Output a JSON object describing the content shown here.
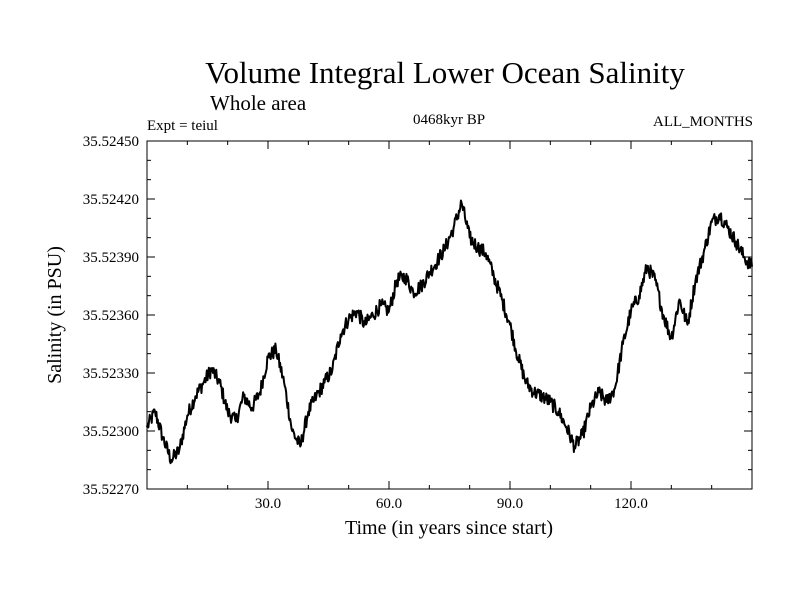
{
  "chart_data": {
    "type": "line",
    "title": "Volume Integral Lower Ocean Salinity",
    "subtitle": "Whole area",
    "annotations": {
      "left": "Expt = teiul",
      "center": "0468kyr BP",
      "right": "ALL_MONTHS"
    },
    "xlabel": "Time (in years since start)",
    "ylabel": "Salinity (in PSU)",
    "xlim": [
      0,
      150
    ],
    "ylim": [
      35.5227,
      35.5245
    ],
    "xticks": [
      30,
      60,
      90,
      120
    ],
    "xtick_labels": [
      "30.0",
      "60.0",
      "90.0",
      "120.0"
    ],
    "yticks": [
      35.5227,
      35.523,
      35.5233,
      35.5236,
      35.5239,
      35.5242,
      35.5245
    ],
    "ytick_labels": [
      "35.52270",
      "35.52300",
      "35.52330",
      "35.52360",
      "35.52390",
      "35.52420",
      "35.52450"
    ],
    "grid": false,
    "series": [
      {
        "name": "Salinity",
        "x": [
          0,
          2,
          4,
          6,
          8,
          10,
          12,
          14,
          16,
          18,
          20,
          22,
          24,
          26,
          28,
          30,
          32,
          34,
          36,
          38,
          40,
          42,
          44,
          46,
          48,
          50,
          52,
          54,
          56,
          58,
          60,
          62,
          64,
          66,
          68,
          70,
          72,
          74,
          76,
          78,
          80,
          82,
          84,
          86,
          88,
          90,
          92,
          94,
          96,
          98,
          100,
          102,
          104,
          106,
          108,
          110,
          112,
          114,
          116,
          118,
          120,
          122,
          124,
          126,
          128,
          130,
          132,
          134,
          136,
          138,
          140,
          142,
          144,
          146,
          148,
          150
        ],
        "values": [
          35.52302,
          35.5231,
          35.52296,
          35.52285,
          35.5229,
          35.52308,
          35.52318,
          35.52325,
          35.52332,
          35.52325,
          35.5231,
          35.52305,
          35.52318,
          35.52312,
          35.5232,
          35.52338,
          35.52342,
          35.52325,
          35.523,
          35.52292,
          35.5231,
          35.52318,
          35.52325,
          35.52332,
          35.5235,
          35.52358,
          35.52362,
          35.52355,
          35.5236,
          35.52365,
          35.52362,
          35.52378,
          35.5238,
          35.52372,
          35.52375,
          35.52382,
          35.52388,
          35.52395,
          35.52405,
          35.52418,
          35.524,
          35.52395,
          35.52392,
          35.5238,
          35.52368,
          35.52355,
          35.52338,
          35.52325,
          35.5232,
          35.52318,
          35.52315,
          35.5231,
          35.52302,
          35.52292,
          35.52298,
          35.52312,
          35.5232,
          35.52315,
          35.52322,
          35.52345,
          35.52362,
          35.5237,
          35.52385,
          35.52378,
          35.5236,
          35.52348,
          35.52368,
          35.52355,
          35.52378,
          35.52392,
          35.52408,
          35.52412,
          35.52405,
          35.52398,
          35.5239,
          35.52385
        ]
      }
    ]
  }
}
